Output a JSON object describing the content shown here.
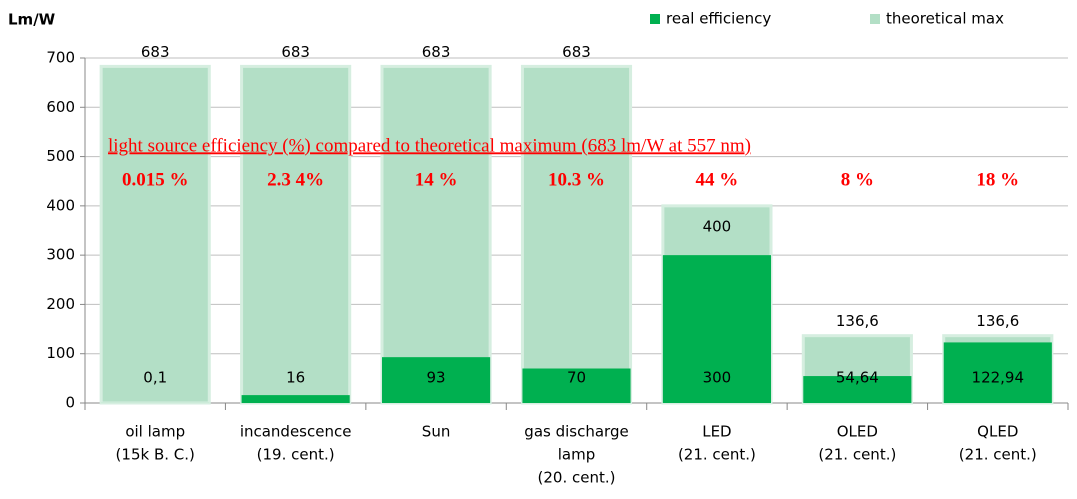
{
  "chart_data": {
    "type": "overlap_bar",
    "y_axis_label": "Lm/W",
    "annotation": "light source efficiency (%) compared to theoretical maximum (683 lm/W at 557 nm)",
    "percent_labels": [
      "0.015 %",
      "2.3 4%",
      "14 %",
      "10.3 %",
      "44 %",
      "8 %",
      "18 %"
    ],
    "categories": [
      [
        "oil lamp",
        "(15k B. C.)"
      ],
      [
        "incandescence",
        "(19. cent.)"
      ],
      [
        "Sun"
      ],
      [
        "gas discharge",
        "lamp",
        "(20. cent.)"
      ],
      [
        "LED",
        "(21. cent.)"
      ],
      [
        "OLED",
        "(21. cent.)"
      ],
      [
        "QLED",
        "(21. cent.)"
      ]
    ],
    "series": [
      {
        "name": "real efficiency",
        "color": "#00b050",
        "values": [
          0.1,
          16,
          93,
          70,
          300,
          54.64,
          122.94
        ],
        "value_labels": [
          "0,1",
          "16",
          "93",
          "70",
          "300",
          "54,64",
          "122,94"
        ]
      },
      {
        "name": "theoretical max",
        "color": "#b3dfc6",
        "values": [
          683,
          683,
          683,
          683,
          400,
          136.6,
          136.6
        ],
        "value_labels": [
          "683",
          "683",
          "683",
          "683",
          "400",
          "136,6",
          "136,6"
        ]
      }
    ],
    "ylim": [
      0,
      700
    ],
    "yticks": [
      0,
      100,
      200,
      300,
      400,
      500,
      600,
      700
    ],
    "grid": true,
    "legend": "top-right"
  }
}
